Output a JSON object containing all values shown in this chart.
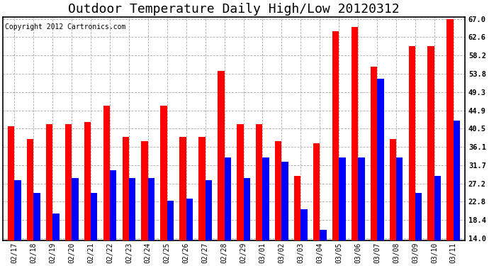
{
  "title": "Outdoor Temperature Daily High/Low 20120312",
  "copyright": "Copyright 2012 Cartronics.com",
  "dates": [
    "02/17",
    "02/18",
    "02/19",
    "02/20",
    "02/21",
    "02/22",
    "02/23",
    "02/24",
    "02/25",
    "02/26",
    "02/27",
    "02/28",
    "02/29",
    "03/01",
    "03/02",
    "03/03",
    "03/04",
    "03/05",
    "03/06",
    "03/07",
    "03/08",
    "03/09",
    "03/10",
    "03/11"
  ],
  "highs": [
    41.0,
    38.0,
    41.5,
    41.5,
    42.0,
    46.0,
    38.5,
    37.5,
    46.0,
    38.5,
    38.5,
    54.5,
    41.5,
    41.5,
    37.5,
    29.0,
    37.0,
    64.0,
    65.0,
    55.5,
    38.0,
    60.5,
    60.5,
    67.0
  ],
  "lows": [
    28.0,
    25.0,
    20.0,
    28.5,
    25.0,
    30.5,
    28.5,
    28.5,
    23.0,
    23.5,
    28.0,
    33.5,
    28.5,
    33.5,
    32.5,
    21.0,
    16.0,
    33.5,
    33.5,
    52.5,
    33.5,
    25.0,
    29.0,
    42.5
  ],
  "yticks": [
    14.0,
    18.4,
    22.8,
    27.2,
    31.7,
    36.1,
    40.5,
    44.9,
    49.3,
    53.8,
    58.2,
    62.6,
    67.0
  ],
  "high_color": "#ff0000",
  "low_color": "#0000ff",
  "bar_width": 0.35,
  "ylim": [
    14.0,
    67.0
  ],
  "bg_color": "#ffffff",
  "grid_color": "#aaaaaa",
  "title_fontsize": 13,
  "copyright_fontsize": 7
}
